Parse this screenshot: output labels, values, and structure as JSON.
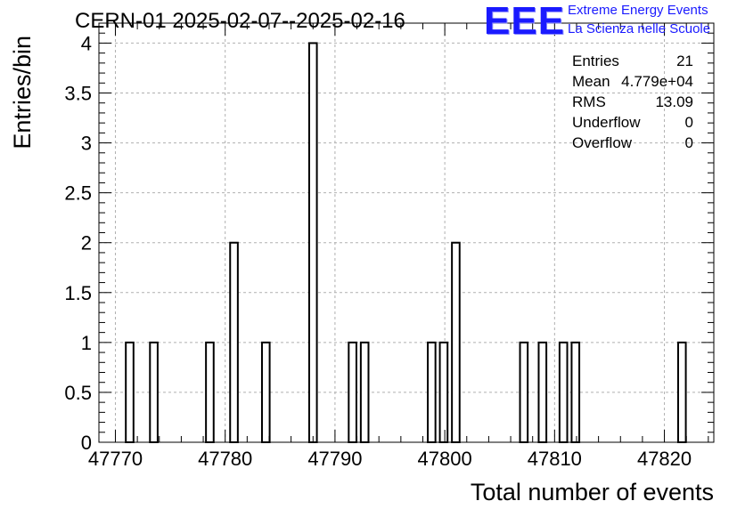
{
  "chart_data": {
    "type": "bar",
    "title": "CERN-01 2025-02-07--2025-02-16",
    "xlabel": "Total number of events",
    "ylabel": "Entries/bin",
    "xlim": [
      47768.5,
      47824.5
    ],
    "ylim": [
      0,
      4.2
    ],
    "bin_width": 0.7,
    "x_ticks": [
      47770,
      47780,
      47790,
      47800,
      47810,
      47820
    ],
    "x_tick_labels": [
      "47770",
      "47780",
      "47790",
      "47800",
      "47810",
      "47820"
    ],
    "y_ticks": [
      0,
      0.5,
      1,
      1.5,
      2,
      2.5,
      3,
      3.5,
      4
    ],
    "y_tick_labels": [
      "0",
      "0.5",
      "1",
      "1.5",
      "2",
      "2.5",
      "3",
      "3.5",
      "4"
    ],
    "grid": true,
    "bins": [
      {
        "x": 47771.3,
        "value": 1
      },
      {
        "x": 47773.5,
        "value": 1
      },
      {
        "x": 47778.6,
        "value": 1
      },
      {
        "x": 47780.8,
        "value": 2
      },
      {
        "x": 47783.7,
        "value": 1
      },
      {
        "x": 47788.0,
        "value": 4
      },
      {
        "x": 47791.6,
        "value": 1
      },
      {
        "x": 47792.7,
        "value": 1
      },
      {
        "x": 47798.8,
        "value": 1
      },
      {
        "x": 47799.9,
        "value": 1
      },
      {
        "x": 47801.0,
        "value": 2
      },
      {
        "x": 47807.2,
        "value": 1
      },
      {
        "x": 47808.9,
        "value": 1
      },
      {
        "x": 47810.8,
        "value": 1
      },
      {
        "x": 47811.9,
        "value": 1
      },
      {
        "x": 47821.6,
        "value": 1
      }
    ],
    "stats": [
      {
        "label": "Entries",
        "value": "21"
      },
      {
        "label": "Mean",
        "value": "4.779e+04"
      },
      {
        "label": "RMS",
        "value": "13.09"
      },
      {
        "label": "Underflow",
        "value": "0"
      },
      {
        "label": "Overflow",
        "value": "0"
      }
    ],
    "colors": {
      "bar_fill": "#ffffff",
      "bar_stroke": "#000000",
      "grid": "#b0b0b0",
      "logo": "#1a1aff"
    }
  },
  "logo": {
    "mark": "EEE",
    "line1": "Extreme Energy Events",
    "line2": "La Scienza nelle Scuole"
  }
}
